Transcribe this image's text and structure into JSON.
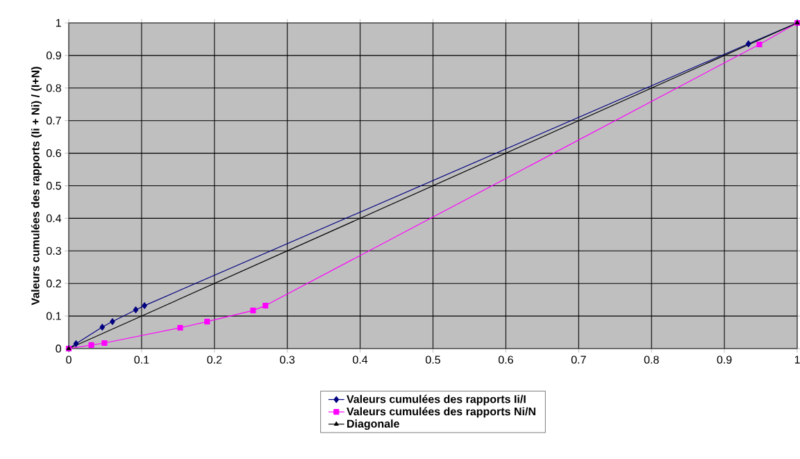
{
  "chart_data": {
    "type": "line",
    "ylabel": "Valeurs cumulées des rapports (Ii + Ni) / (I+N)",
    "xlim": [
      0,
      1
    ],
    "ylim": [
      0,
      1
    ],
    "xticks": [
      0,
      0.1,
      0.2,
      0.3,
      0.4,
      0.5,
      0.6,
      0.7,
      0.8,
      0.9,
      1
    ],
    "yticks": [
      0,
      0.1,
      0.2,
      0.3,
      0.4,
      0.5,
      0.6,
      0.7,
      0.8,
      0.9,
      1
    ],
    "grid": true,
    "legend": "bottom",
    "series": [
      {
        "name": "Valeurs cumulées des rapports Ii/I",
        "color": "#000080",
        "marker": "diamond",
        "x": [
          0,
          0.01,
          0.046,
          0.06,
          0.092,
          0.104,
          0.933,
          1
        ],
        "values": [
          0,
          0.015,
          0.066,
          0.083,
          0.119,
          0.132,
          0.936,
          1
        ]
      },
      {
        "name": "Valeurs cumulées des rapports Ni/N",
        "color": "#ff00ff",
        "marker": "square",
        "x": [
          0,
          0.031,
          0.049,
          0.153,
          0.19,
          0.253,
          0.27,
          0.948,
          1
        ],
        "values": [
          0,
          0.011,
          0.017,
          0.064,
          0.083,
          0.117,
          0.132,
          0.934,
          1
        ]
      },
      {
        "name": "Diagonale",
        "color": "#000000",
        "marker": "triangle",
        "x": [
          0,
          1
        ],
        "values": [
          0,
          1
        ]
      }
    ]
  }
}
